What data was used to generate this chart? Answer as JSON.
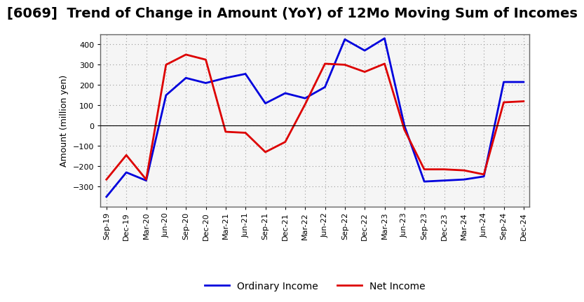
{
  "title": "[6069]  Trend of Change in Amount (YoY) of 12Mo Moving Sum of Incomes",
  "ylabel": "Amount (million yen)",
  "labels": [
    "Sep-19",
    "Dec-19",
    "Mar-20",
    "Jun-20",
    "Sep-20",
    "Dec-20",
    "Mar-21",
    "Jun-21",
    "Sep-21",
    "Dec-21",
    "Mar-22",
    "Jun-22",
    "Sep-22",
    "Dec-22",
    "Mar-23",
    "Jun-23",
    "Sep-23",
    "Dec-23",
    "Mar-24",
    "Jun-24",
    "Sep-24",
    "Dec-24"
  ],
  "ordinary_income": [
    -350,
    -230,
    -270,
    150,
    235,
    210,
    235,
    255,
    110,
    160,
    135,
    190,
    425,
    370,
    430,
    0,
    -275,
    -270,
    -265,
    -250,
    215,
    215
  ],
  "net_income": [
    -265,
    -145,
    -265,
    300,
    350,
    325,
    -30,
    -35,
    -130,
    -80,
    105,
    305,
    300,
    265,
    305,
    -20,
    -215,
    -215,
    -220,
    -240,
    115,
    120
  ],
  "ordinary_income_color": "#0000dd",
  "net_income_color": "#dd0000",
  "line_width": 2.0,
  "ylim": [
    -400,
    450
  ],
  "yticks": [
    -300,
    -200,
    -100,
    0,
    100,
    200,
    300,
    400
  ],
  "background_color": "#ffffff",
  "plot_bg_color": "#f5f5f5",
  "grid_color": "#999999",
  "legend_ordinary": "Ordinary Income",
  "legend_net": "Net Income",
  "title_fontsize": 14,
  "axis_fontsize": 9,
  "tick_fontsize": 8
}
